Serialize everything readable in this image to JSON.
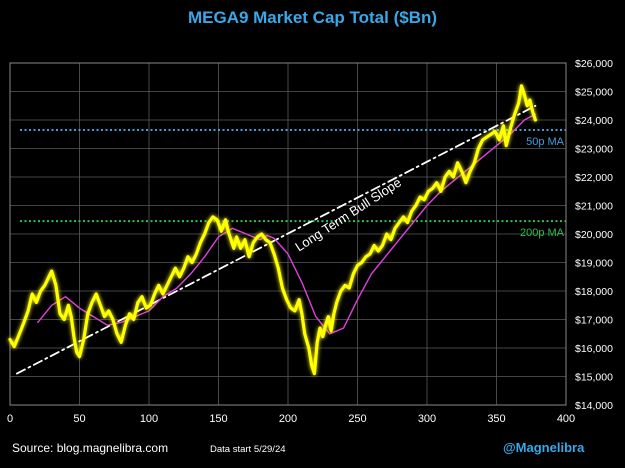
{
  "chart_data": {
    "type": "line",
    "title": "MEGA9 Market Cap Total ($Bn)",
    "xlim": [
      0,
      400
    ],
    "ylim": [
      14000,
      26000
    ],
    "x_ticks": [
      0,
      50,
      100,
      150,
      200,
      250,
      300,
      350,
      400
    ],
    "y_ticks": [
      14000,
      15000,
      16000,
      17000,
      18000,
      19000,
      20000,
      21000,
      22000,
      23000,
      24000,
      25000,
      26000
    ],
    "y_tick_labels": [
      "$14,000",
      "$15,000",
      "$16,000",
      "$17,000",
      "$18,000",
      "$19,000",
      "$20,000",
      "$21,000",
      "$22,000",
      "$23,000",
      "$24,000",
      "$25,000",
      "$26,000"
    ],
    "y_axis_position": "right",
    "grid": true,
    "series": [
      {
        "color": "#ffff00",
        "points": [
          [
            0,
            16300
          ],
          [
            3,
            16050
          ],
          [
            6,
            16400
          ],
          [
            10,
            16900
          ],
          [
            13,
            17300
          ],
          [
            16,
            17900
          ],
          [
            19,
            17600
          ],
          [
            22,
            18000
          ],
          [
            25,
            18200
          ],
          [
            28,
            18500
          ],
          [
            30,
            18700
          ],
          [
            33,
            18200
          ],
          [
            36,
            17200
          ],
          [
            39,
            17000
          ],
          [
            42,
            17500
          ],
          [
            44,
            17100
          ],
          [
            46,
            16400
          ],
          [
            48,
            15850
          ],
          [
            50,
            15700
          ],
          [
            53,
            16300
          ],
          [
            56,
            17200
          ],
          [
            59,
            17600
          ],
          [
            62,
            17900
          ],
          [
            65,
            17500
          ],
          [
            68,
            17100
          ],
          [
            71,
            17300
          ],
          [
            74,
            17000
          ],
          [
            77,
            16500
          ],
          [
            80,
            16200
          ],
          [
            83,
            16800
          ],
          [
            86,
            17200
          ],
          [
            89,
            17000
          ],
          [
            92,
            17600
          ],
          [
            95,
            17800
          ],
          [
            98,
            17400
          ],
          [
            101,
            17500
          ],
          [
            104,
            17900
          ],
          [
            107,
            18200
          ],
          [
            110,
            17900
          ],
          [
            113,
            18200
          ],
          [
            116,
            18500
          ],
          [
            119,
            18800
          ],
          [
            122,
            18500
          ],
          [
            125,
            18800
          ],
          [
            128,
            19200
          ],
          [
            131,
            19000
          ],
          [
            134,
            19300
          ],
          [
            137,
            19700
          ],
          [
            140,
            20000
          ],
          [
            143,
            20400
          ],
          [
            146,
            20600
          ],
          [
            149,
            20500
          ],
          [
            152,
            20100
          ],
          [
            155,
            20500
          ],
          [
            157,
            20100
          ],
          [
            159,
            19800
          ],
          [
            161,
            19500
          ],
          [
            163,
            19900
          ],
          [
            166,
            19500
          ],
          [
            169,
            19800
          ],
          [
            172,
            19200
          ],
          [
            175,
            19700
          ],
          [
            178,
            19900
          ],
          [
            181,
            20000
          ],
          [
            184,
            19800
          ],
          [
            187,
            19700
          ],
          [
            190,
            19300
          ],
          [
            193,
            18800
          ],
          [
            196,
            18100
          ],
          [
            199,
            17700
          ],
          [
            202,
            17400
          ],
          [
            205,
            17300
          ],
          [
            208,
            17700
          ],
          [
            210,
            17200
          ],
          [
            212,
            16500
          ],
          [
            215,
            16000
          ],
          [
            217,
            15400
          ],
          [
            219,
            15100
          ],
          [
            221,
            16200
          ],
          [
            223,
            16700
          ],
          [
            225,
            16400
          ],
          [
            227,
            16800
          ],
          [
            229,
            17100
          ],
          [
            231,
            16600
          ],
          [
            233,
            17200
          ],
          [
            235,
            17600
          ],
          [
            238,
            18000
          ],
          [
            241,
            18200
          ],
          [
            244,
            18100
          ],
          [
            247,
            18600
          ],
          [
            250,
            18900
          ],
          [
            253,
            19000
          ],
          [
            256,
            19200
          ],
          [
            259,
            19300
          ],
          [
            262,
            19600
          ],
          [
            265,
            19400
          ],
          [
            268,
            19600
          ],
          [
            271,
            20000
          ],
          [
            274,
            19800
          ],
          [
            277,
            20200
          ],
          [
            280,
            20400
          ],
          [
            283,
            20600
          ],
          [
            286,
            20400
          ],
          [
            289,
            20800
          ],
          [
            292,
            21000
          ],
          [
            295,
            21300
          ],
          [
            298,
            21200
          ],
          [
            301,
            21500
          ],
          [
            304,
            21600
          ],
          [
            307,
            21800
          ],
          [
            310,
            21500
          ],
          [
            313,
            22000
          ],
          [
            316,
            22200
          ],
          [
            319,
            22000
          ],
          [
            322,
            22500
          ],
          [
            325,
            22200
          ],
          [
            328,
            21800
          ],
          [
            331,
            22200
          ],
          [
            334,
            22500
          ],
          [
            337,
            23000
          ],
          [
            340,
            23300
          ],
          [
            343,
            23400
          ],
          [
            346,
            23500
          ],
          [
            349,
            23600
          ],
          [
            352,
            23300
          ],
          [
            355,
            23800
          ],
          [
            357,
            23100
          ],
          [
            360,
            23700
          ],
          [
            363,
            24200
          ],
          [
            366,
            24600
          ],
          [
            368,
            25200
          ],
          [
            370,
            24900
          ],
          [
            372,
            24500
          ],
          [
            374,
            24700
          ],
          [
            376,
            24300
          ],
          [
            378,
            24000
          ]
        ]
      },
      {
        "color": "#e040e0",
        "points": [
          [
            20,
            16900
          ],
          [
            30,
            17500
          ],
          [
            40,
            17800
          ],
          [
            50,
            17400
          ],
          [
            60,
            17100
          ],
          [
            70,
            16800
          ],
          [
            80,
            16900
          ],
          [
            90,
            17100
          ],
          [
            100,
            17300
          ],
          [
            110,
            17800
          ],
          [
            120,
            18100
          ],
          [
            130,
            18600
          ],
          [
            140,
            19200
          ],
          [
            150,
            19900
          ],
          [
            160,
            20200
          ],
          [
            170,
            20000
          ],
          [
            180,
            19800
          ],
          [
            185,
            19950
          ],
          [
            190,
            19850
          ],
          [
            200,
            19300
          ],
          [
            210,
            18300
          ],
          [
            220,
            17100
          ],
          [
            230,
            16500
          ],
          [
            240,
            16700
          ],
          [
            250,
            17700
          ],
          [
            260,
            18600
          ],
          [
            270,
            19200
          ],
          [
            280,
            19800
          ],
          [
            290,
            20400
          ],
          [
            300,
            21000
          ],
          [
            310,
            21500
          ],
          [
            320,
            21900
          ],
          [
            330,
            22300
          ],
          [
            340,
            22700
          ],
          [
            350,
            23100
          ],
          [
            360,
            23500
          ],
          [
            370,
            24000
          ],
          [
            378,
            24200
          ]
        ]
      },
      {
        "color": "#ffffff",
        "dash": "dash-dot",
        "points": [
          [
            5,
            15100
          ],
          [
            378,
            24500
          ]
        ]
      }
    ],
    "reference_lines": [
      {
        "y": 23650,
        "color": "#3d9fe0",
        "label": "50p MA"
      },
      {
        "y": 20450,
        "color": "#2fbf4a",
        "label": "200p MA"
      }
    ],
    "annotations": [
      {
        "text": "Long Term Bull Slope",
        "x": 245,
        "y": 20550,
        "angle": -33
      }
    ]
  },
  "footer": {
    "source": "Source: blog.magnelibra.com",
    "data_start": "Data start 5/29/24",
    "handle": "@Magnelibra"
  }
}
